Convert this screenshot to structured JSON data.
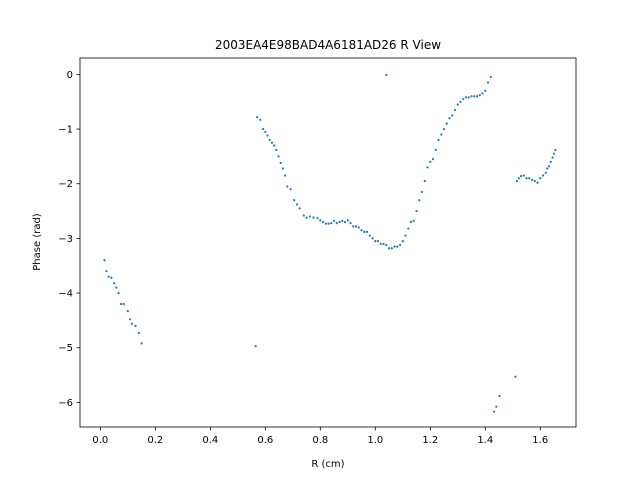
{
  "chart_data": {
    "type": "scatter",
    "title": "2003EA4E98BAD4A6181AD26 R View",
    "xlabel": "R (cm)",
    "ylabel": "Phase (rad)",
    "xlim": [
      -0.074,
      1.73
    ],
    "ylim": [
      -6.45,
      0.3
    ],
    "x_ticks": [
      0.0,
      0.2,
      0.4,
      0.6,
      0.8,
      1.0,
      1.2,
      1.4,
      1.6
    ],
    "x_tick_labels": [
      "0.0",
      "0.2",
      "0.4",
      "0.6",
      "0.8",
      "1.0",
      "1.2",
      "1.4",
      "1.6"
    ],
    "y_ticks": [
      0,
      -1,
      -2,
      -3,
      -4,
      -5,
      -6
    ],
    "y_tick_labels": [
      "0",
      "−1",
      "−2",
      "−3",
      "−4",
      "−5",
      "−6"
    ],
    "grid": false,
    "marker_color": "#1f77b4",
    "points": [
      [
        0.015,
        -3.4
      ],
      [
        0.022,
        -3.6
      ],
      [
        0.03,
        -3.7
      ],
      [
        0.04,
        -3.72
      ],
      [
        0.05,
        -3.82
      ],
      [
        0.058,
        -3.9
      ],
      [
        0.066,
        -4.0
      ],
      [
        0.075,
        -4.2
      ],
      [
        0.085,
        -4.2
      ],
      [
        0.1,
        -4.33
      ],
      [
        0.108,
        -4.48
      ],
      [
        0.115,
        -4.56
      ],
      [
        0.128,
        -4.6
      ],
      [
        0.14,
        -4.73
      ],
      [
        0.15,
        -4.92
      ],
      [
        0.565,
        -4.97
      ],
      [
        0.57,
        -0.78
      ],
      [
        0.582,
        -0.83
      ],
      [
        0.592,
        -1.0
      ],
      [
        0.6,
        -1.05
      ],
      [
        0.608,
        -1.12
      ],
      [
        0.616,
        -1.2
      ],
      [
        0.624,
        -1.25
      ],
      [
        0.632,
        -1.3
      ],
      [
        0.64,
        -1.38
      ],
      [
        0.648,
        -1.5
      ],
      [
        0.656,
        -1.62
      ],
      [
        0.664,
        -1.72
      ],
      [
        0.672,
        -1.85
      ],
      [
        0.68,
        -2.05
      ],
      [
        0.692,
        -2.1
      ],
      [
        0.705,
        -2.3
      ],
      [
        0.715,
        -2.38
      ],
      [
        0.725,
        -2.45
      ],
      [
        0.74,
        -2.58
      ],
      [
        0.75,
        -2.62
      ],
      [
        0.762,
        -2.6
      ],
      [
        0.775,
        -2.62
      ],
      [
        0.79,
        -2.63
      ],
      [
        0.8,
        -2.67
      ],
      [
        0.81,
        -2.7
      ],
      [
        0.82,
        -2.73
      ],
      [
        0.83,
        -2.73
      ],
      [
        0.84,
        -2.72
      ],
      [
        0.85,
        -2.68
      ],
      [
        0.86,
        -2.72
      ],
      [
        0.87,
        -2.7
      ],
      [
        0.88,
        -2.68
      ],
      [
        0.89,
        -2.7
      ],
      [
        0.9,
        -2.67
      ],
      [
        0.91,
        -2.72
      ],
      [
        0.92,
        -2.78
      ],
      [
        0.93,
        -2.78
      ],
      [
        0.94,
        -2.8
      ],
      [
        0.95,
        -2.85
      ],
      [
        0.96,
        -2.88
      ],
      [
        0.97,
        -2.88
      ],
      [
        0.98,
        -2.95
      ],
      [
        0.99,
        -3.0
      ],
      [
        1.0,
        -3.05
      ],
      [
        1.01,
        -3.05
      ],
      [
        1.02,
        -3.1
      ],
      [
        1.03,
        -3.1
      ],
      [
        1.04,
        -3.12
      ],
      [
        1.05,
        -3.18
      ],
      [
        1.06,
        -3.18
      ],
      [
        1.07,
        -3.15
      ],
      [
        1.08,
        -3.15
      ],
      [
        1.09,
        -3.12
      ],
      [
        1.1,
        -3.05
      ],
      [
        1.11,
        -2.95
      ],
      [
        1.12,
        -2.82
      ],
      [
        1.13,
        -2.7
      ],
      [
        1.14,
        -2.68
      ],
      [
        1.15,
        -2.5
      ],
      [
        1.16,
        -2.3
      ],
      [
        1.17,
        -2.15
      ],
      [
        1.18,
        -1.95
      ],
      [
        1.19,
        -1.7
      ],
      [
        1.2,
        -1.6
      ],
      [
        1.21,
        -1.55
      ],
      [
        1.22,
        -1.38
      ],
      [
        1.23,
        -1.2
      ],
      [
        1.24,
        -1.1
      ],
      [
        1.25,
        -1.0
      ],
      [
        1.26,
        -0.9
      ],
      [
        1.27,
        -0.8
      ],
      [
        1.28,
        -0.75
      ],
      [
        1.29,
        -0.65
      ],
      [
        1.3,
        -0.55
      ],
      [
        1.31,
        -0.5
      ],
      [
        1.32,
        -0.45
      ],
      [
        1.33,
        -0.42
      ],
      [
        1.34,
        -0.42
      ],
      [
        1.35,
        -0.4
      ],
      [
        1.36,
        -0.4
      ],
      [
        1.37,
        -0.4
      ],
      [
        1.38,
        -0.38
      ],
      [
        1.39,
        -0.35
      ],
      [
        1.4,
        -0.3
      ],
      [
        1.41,
        -0.15
      ],
      [
        1.42,
        -0.05
      ],
      [
        1.04,
        -0.01
      ],
      [
        1.432,
        -6.17
      ],
      [
        1.44,
        -6.08
      ],
      [
        1.452,
        -5.88
      ],
      [
        1.51,
        -5.53
      ],
      [
        1.515,
        -1.95
      ],
      [
        1.522,
        -1.9
      ],
      [
        1.53,
        -1.86
      ],
      [
        1.54,
        -1.85
      ],
      [
        1.55,
        -1.9
      ],
      [
        1.56,
        -1.9
      ],
      [
        1.57,
        -1.93
      ],
      [
        1.58,
        -1.95
      ],
      [
        1.59,
        -1.98
      ],
      [
        1.6,
        -1.9
      ],
      [
        1.61,
        -1.85
      ],
      [
        1.62,
        -1.8
      ],
      [
        1.625,
        -1.72
      ],
      [
        1.632,
        -1.68
      ],
      [
        1.638,
        -1.6
      ],
      [
        1.645,
        -1.52
      ],
      [
        1.65,
        -1.45
      ],
      [
        1.655,
        -1.38
      ]
    ]
  }
}
